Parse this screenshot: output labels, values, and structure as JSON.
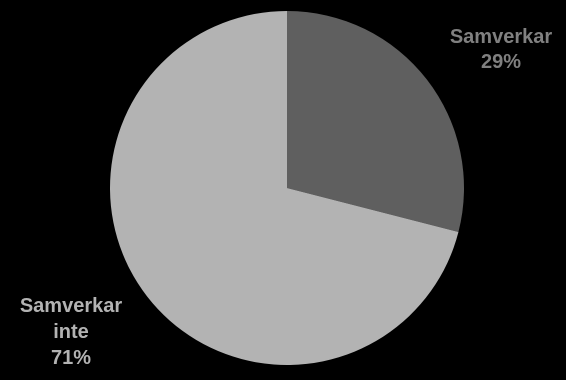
{
  "chart_data": {
    "type": "pie",
    "title": "",
    "slices": [
      {
        "label_lines": [
          "Samverkar"
        ],
        "percent_text": "29%",
        "value": 29,
        "color": "#5f5f5f",
        "label_color": "#808080"
      },
      {
        "label_lines": [
          "Samverkar",
          "inte"
        ],
        "percent_text": "71%",
        "value": 71,
        "color": "#b3b3b3",
        "label_color": "#b3b3b3"
      }
    ],
    "start_angle_deg": 0,
    "direction": "clockwise",
    "legend": "none",
    "background": "#000000"
  }
}
